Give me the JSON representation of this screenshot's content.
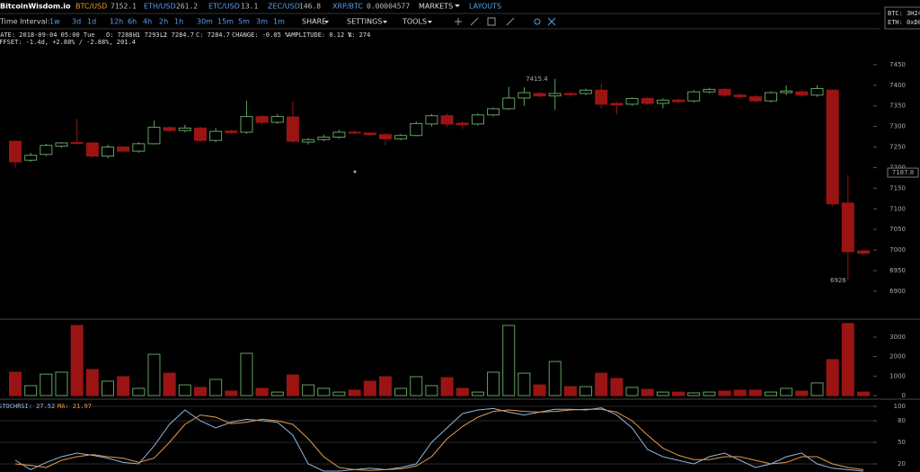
{
  "nav": {
    "brand": "BitcoinWisdom.io",
    "tickers": [
      {
        "pair": "BTC/USD",
        "price": "7152.1"
      },
      {
        "pair": "ETH/USD",
        "price": "261.2"
      },
      {
        "pair": "ETC/USD",
        "price": "13.1"
      },
      {
        "pair": "ZEC/USD",
        "price": "146.8"
      },
      {
        "pair": "XRP/BTC",
        "price": "0.00004577"
      }
    ],
    "menus": [
      "MARKETS",
      "LAYOUTS"
    ],
    "donate": [
      "BTC: 3H24",
      "ETH: 0xD0"
    ]
  },
  "toolbar": {
    "label": "Time Interval:",
    "intervals": [
      "1w",
      "3d",
      "1d",
      "12h",
      "6h",
      "4h",
      "2h",
      "1h",
      "30m",
      "15m",
      "5m",
      "3m",
      "1m"
    ],
    "menus": [
      "SHARE",
      "SETTINGS",
      "TOOLS"
    ]
  },
  "info": {
    "line1": [
      "DATE: 2018-09-04 05:00 Tue",
      "O: 7288.1",
      "H: 7293.2",
      "L: 7284.7",
      "C: 7284.7",
      "CHANGE: -0.05 %",
      "AMPLITUDE: 0.12 %",
      "V: 274"
    ],
    "line2": "OFFSET: -1.4d, +2.88% / -2.88%, 201.4"
  },
  "chart_data": [
    {
      "type": "candlestick",
      "up_color": "#5fa35f",
      "down_color": "#9b1414",
      "open": [
        7264,
        7218,
        7232,
        7252,
        7261,
        7260,
        7228,
        7250,
        7240,
        7258,
        7297,
        7290,
        7296,
        7266,
        7289,
        7286,
        7324,
        7310,
        7323,
        7262,
        7268,
        7274,
        7286,
        7284,
        7280,
        7270,
        7278,
        7306,
        7326,
        7308,
        7306,
        7328,
        7343,
        7369,
        7380,
        7374,
        7380,
        7380,
        7388,
        7356,
        7354,
        7368,
        7356,
        7364,
        7362,
        7384,
        7390,
        7376,
        7372,
        7362,
        7382,
        7384,
        7376,
        7388,
        7114,
        6998
      ],
      "high": [
        7265,
        7236,
        7258,
        7262,
        7318,
        7262,
        7256,
        7252,
        7262,
        7314,
        7300,
        7304,
        7300,
        7296,
        7292,
        7362,
        7328,
        7330,
        7362,
        7272,
        7280,
        7292,
        7290,
        7286,
        7284,
        7282,
        7312,
        7330,
        7332,
        7312,
        7332,
        7346,
        7396,
        7395,
        7384,
        7415.4,
        7384,
        7392,
        7404,
        7360,
        7370,
        7372,
        7368,
        7368,
        7388,
        7394,
        7394,
        7380,
        7376,
        7386,
        7400,
        7390,
        7400,
        7390,
        7182,
        7000
      ],
      "low": [
        7200,
        7214,
        7228,
        7248,
        7256,
        7224,
        7222,
        7238,
        7236,
        7256,
        7286,
        7286,
        7262,
        7262,
        7282,
        7282,
        7305,
        7306,
        7260,
        7256,
        7264,
        7270,
        7282,
        7276,
        7254,
        7266,
        7276,
        7300,
        7298,
        7294,
        7302,
        7324,
        7340,
        7350,
        7370,
        7340,
        7372,
        7376,
        7344,
        7330,
        7350,
        7352,
        7344,
        7356,
        7358,
        7380,
        7372,
        7368,
        7358,
        7358,
        7376,
        7372,
        7372,
        7106,
        6926,
        6988
      ],
      "close": [
        7214,
        7230,
        7254,
        7260,
        7259,
        7228,
        7250,
        7240,
        7258,
        7298,
        7290,
        7296,
        7266,
        7288,
        7285,
        7324,
        7310,
        7324,
        7264,
        7268,
        7274,
        7286,
        7284,
        7280,
        7270,
        7278,
        7307,
        7326,
        7306,
        7304,
        7328,
        7343,
        7369,
        7382,
        7374,
        7380,
        7377,
        7388,
        7354,
        7352,
        7368,
        7356,
        7364,
        7360,
        7384,
        7390,
        7376,
        7372,
        7362,
        7382,
        7386,
        7376,
        7392,
        7112,
        6996,
        6992
      ],
      "high_label": "7415.4",
      "low_label": "6926",
      "last_price": 7187.8,
      "ylim": [
        6843,
        7476
      ],
      "yticks": [
        6900,
        6950,
        7000,
        7050,
        7100,
        7150,
        7200,
        7250,
        7300,
        7350,
        7400,
        7450
      ]
    },
    {
      "type": "bar",
      "values": [
        1200,
        510,
        1100,
        1200,
        3600,
        1340,
        740,
        970,
        370,
        2120,
        1150,
        550,
        420,
        830,
        230,
        2170,
        370,
        180,
        1060,
        550,
        370,
        180,
        280,
        740,
        970,
        370,
        970,
        510,
        920,
        370,
        180,
        1200,
        3600,
        1150,
        550,
        1750,
        460,
        460,
        1150,
        880,
        420,
        320,
        180,
        180,
        140,
        180,
        230,
        280,
        280,
        180,
        370,
        230,
        650,
        1850,
        3700,
        180
      ],
      "ylim": [
        0,
        3830
      ],
      "yticks": [
        0,
        1000,
        2000,
        3000
      ]
    },
    {
      "type": "line",
      "grid": true,
      "series": [
        {
          "name": "STOCHRSI: 27.52",
          "color": "#8fb6e3",
          "values": [
            25,
            12,
            22,
            30,
            35,
            32,
            28,
            22,
            20,
            45,
            75,
            95,
            80,
            70,
            78,
            82,
            80,
            78,
            60,
            20,
            10,
            10,
            12,
            14,
            12,
            15,
            20,
            50,
            70,
            90,
            95,
            97,
            92,
            88,
            92,
            96,
            96,
            95,
            98,
            88,
            70,
            40,
            30,
            25,
            20,
            30,
            35,
            25,
            15,
            20,
            30,
            35,
            20,
            14,
            12,
            10
          ]
        },
        {
          "name": "MA: 21.97",
          "color": "#e39a4a",
          "values": [
            20,
            18,
            15,
            25,
            30,
            33,
            30,
            28,
            22,
            28,
            50,
            75,
            88,
            85,
            76,
            78,
            82,
            80,
            75,
            55,
            30,
            15,
            12,
            11,
            12,
            13,
            17,
            30,
            55,
            72,
            85,
            93,
            95,
            93,
            92,
            93,
            95,
            96,
            96,
            92,
            80,
            60,
            42,
            32,
            26,
            26,
            30,
            30,
            25,
            20,
            22,
            30,
            30,
            20,
            15,
            12
          ]
        }
      ],
      "ylim": [
        10,
        107.5
      ],
      "yticks": [
        20,
        50,
        80,
        100
      ]
    }
  ]
}
